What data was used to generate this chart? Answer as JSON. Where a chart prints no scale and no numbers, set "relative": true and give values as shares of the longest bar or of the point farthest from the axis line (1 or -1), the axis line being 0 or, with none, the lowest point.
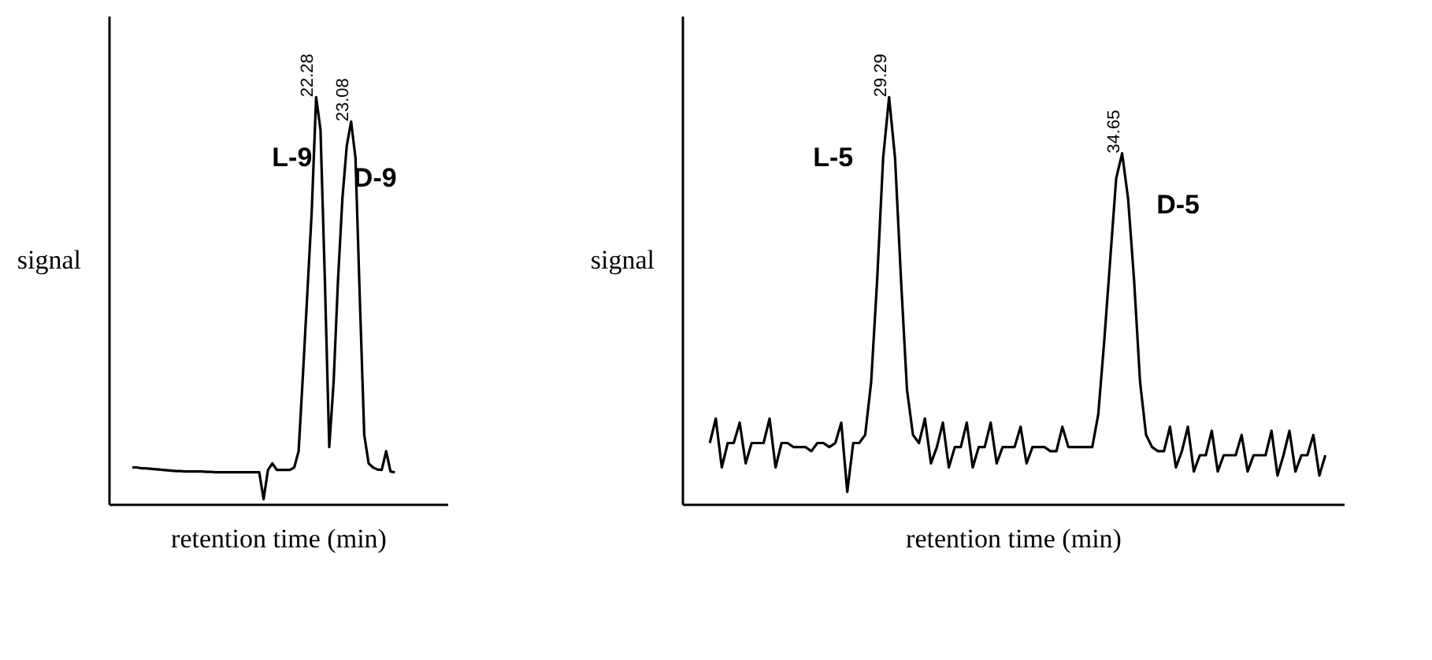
{
  "chart_data": [
    {
      "type": "line",
      "relative": true,
      "xlabel": "retention time (min)",
      "ylabel": "signal",
      "marker": "none",
      "line_style": "solid",
      "categories": [
        null,
        null,
        null,
        null,
        null,
        null,
        null,
        null,
        null,
        null,
        null,
        null,
        null,
        null,
        null,
        null,
        null,
        null,
        null,
        null,
        null,
        null,
        null,
        null,
        null,
        null,
        null,
        null,
        null,
        null,
        null,
        null,
        null,
        null,
        null,
        null,
        null,
        null,
        null,
        null,
        null,
        null,
        null,
        null,
        null,
        null,
        null,
        null,
        null,
        null,
        null,
        null,
        null,
        null,
        null,
        null,
        null,
        null,
        null,
        null,
        null
      ],
      "series": [
        {
          "color": "#000000",
          "values": [
            0.09,
            0.09,
            0.088,
            0.088,
            0.087,
            0.086,
            0.085,
            0.084,
            0.083,
            0.082,
            0.081,
            0.081,
            0.08,
            0.08,
            0.08,
            0.08,
            0.08,
            0.079,
            0.079,
            0.078,
            0.078,
            0.078,
            0.078,
            0.078,
            0.078,
            0.078,
            0.078,
            0.078,
            0.078,
            0.078,
            0.012,
            0.084,
            0.1,
            0.084,
            0.084,
            0.084,
            0.084,
            0.09,
            0.13,
            0.32,
            0.52,
            0.72,
            1.0,
            0.92,
            0.55,
            0.14,
            0.3,
            0.55,
            0.75,
            0.88,
            0.94,
            0.85,
            0.5,
            0.17,
            0.1,
            0.09,
            0.085,
            0.084,
            0.13,
            0.08,
            0.078
          ]
        }
      ],
      "annotations": [
        {
          "text": "22.28",
          "y": 1.0
        },
        {
          "text": "23.08",
          "y": 0.94
        },
        "L-9",
        "D-9"
      ]
    },
    {
      "type": "line",
      "relative": true,
      "xlabel": "retention time (min)",
      "ylabel": "signal",
      "marker": "none",
      "line_style": "solid",
      "categories": [
        null,
        null,
        null,
        null,
        null,
        null,
        null,
        null,
        null,
        null,
        null,
        null,
        null,
        null,
        null,
        null,
        null,
        null,
        null,
        null,
        null,
        null,
        null,
        null,
        null,
        null,
        null,
        null,
        null,
        null,
        null,
        null,
        null,
        null,
        null,
        null,
        null,
        null,
        null,
        null,
        null,
        null,
        null,
        null,
        null,
        null,
        null,
        null,
        null,
        null,
        null,
        null,
        null,
        null,
        null,
        null,
        null,
        null,
        null,
        null,
        null,
        null,
        null,
        null,
        null,
        null,
        null,
        null,
        null,
        null,
        null,
        null,
        null,
        null,
        null,
        null,
        null,
        null,
        null,
        null,
        null,
        null,
        null,
        null,
        null,
        null,
        null,
        null,
        null,
        null,
        null,
        null,
        null,
        null,
        null,
        null,
        null,
        null,
        null,
        null,
        null,
        null,
        null,
        null
      ],
      "series": [
        {
          "color": "#000000",
          "values": [
            0.15,
            0.21,
            0.09,
            0.15,
            0.15,
            0.2,
            0.1,
            0.15,
            0.15,
            0.15,
            0.21,
            0.09,
            0.15,
            0.15,
            0.14,
            0.14,
            0.14,
            0.13,
            0.15,
            0.15,
            0.14,
            0.15,
            0.2,
            0.03,
            0.15,
            0.15,
            0.17,
            0.3,
            0.55,
            0.85,
            1.0,
            0.85,
            0.55,
            0.28,
            0.17,
            0.15,
            0.21,
            0.1,
            0.14,
            0.2,
            0.09,
            0.14,
            0.14,
            0.2,
            0.09,
            0.14,
            0.14,
            0.2,
            0.1,
            0.14,
            0.14,
            0.14,
            0.19,
            0.1,
            0.14,
            0.14,
            0.14,
            0.13,
            0.13,
            0.19,
            0.14,
            0.14,
            0.14,
            0.14,
            0.14,
            0.22,
            0.4,
            0.6,
            0.8,
            0.862,
            0.75,
            0.55,
            0.3,
            0.17,
            0.14,
            0.13,
            0.13,
            0.19,
            0.09,
            0.13,
            0.19,
            0.08,
            0.12,
            0.12,
            0.18,
            0.08,
            0.12,
            0.12,
            0.12,
            0.17,
            0.08,
            0.12,
            0.12,
            0.12,
            0.18,
            0.07,
            0.12,
            0.18,
            0.08,
            0.12,
            0.12,
            0.17,
            0.07,
            0.12
          ]
        }
      ],
      "annotations": [
        {
          "text": "29.29",
          "y": 1.0
        },
        {
          "text": "34.65",
          "y": 0.862
        },
        "L-5",
        "D-5"
      ]
    }
  ]
}
